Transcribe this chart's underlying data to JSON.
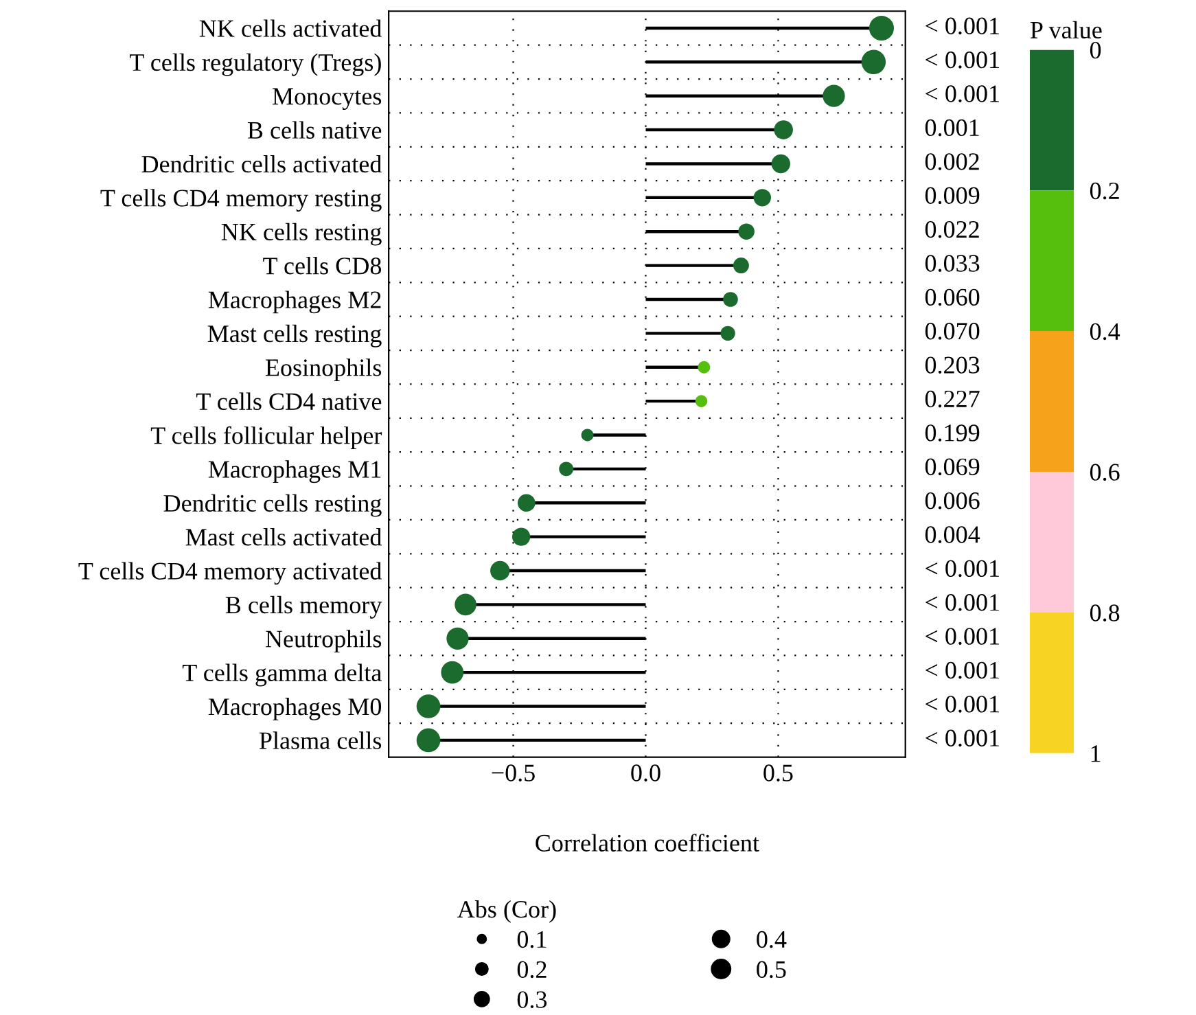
{
  "chart_data": [
    {
      "type": "lollipop",
      "xlabel": "Correlation coefficient",
      "categories": [
        "NK cells activated",
        "T cells regulatory (Tregs)",
        "Monocytes",
        "B cells native",
        "Dendritic cells activated",
        "T cells CD4 memory resting",
        "NK cells resting",
        "T cells CD8",
        "Macrophages M2",
        "Mast cells resting",
        "Eosinophils",
        "T cells CD4 native",
        "T cells follicular helper",
        "Macrophages M1",
        "Dendritic cells resting",
        "Mast cells activated",
        "T cells CD4 memory activated",
        "B cells memory",
        "Neutrophils",
        "T cells gamma delta",
        "Macrophages M0",
        "Plasma cells"
      ],
      "orientation": "horizontal",
      "values": [
        0.89,
        0.86,
        0.71,
        0.52,
        0.51,
        0.44,
        0.38,
        0.36,
        0.32,
        0.31,
        0.22,
        0.21,
        -0.22,
        -0.3,
        -0.45,
        -0.47,
        -0.55,
        -0.68,
        -0.71,
        -0.73,
        -0.82,
        -0.82
      ],
      "sizes": [
        0.89,
        0.86,
        0.71,
        0.52,
        0.51,
        0.44,
        0.38,
        0.36,
        0.32,
        0.31,
        0.22,
        0.21,
        0.22,
        0.3,
        0.45,
        0.47,
        0.55,
        0.68,
        0.71,
        0.73,
        0.82,
        0.82
      ],
      "size_legend": [
        0.1,
        0.2,
        0.3,
        0.4,
        0.5
      ],
      "legend_title": "Abs (Cor)",
      "colors": [
        "#1b6b2e",
        "#1b6b2e",
        "#1b6b2e",
        "#1b6b2e",
        "#1b6b2e",
        "#1b6b2e",
        "#1b6b2e",
        "#1b6b2e",
        "#1b6b2e",
        "#1b6b2e",
        "#56bf0d",
        "#56bf0d",
        "#1b6b2e",
        "#1b6b2e",
        "#1b6b2e",
        "#1b6b2e",
        "#1b6b2e",
        "#1b6b2e",
        "#1b6b2e",
        "#1b6b2e",
        "#1b6b2e",
        "#1b6b2e"
      ],
      "annotations": [
        "< 0.001",
        "< 0.001",
        "< 0.001",
        "0.001",
        "0.002",
        "0.009",
        "0.022",
        "0.033",
        "0.060",
        "0.070",
        "0.203",
        "0.227",
        "0.199",
        "0.069",
        "0.006",
        "0.004",
        "< 0.001",
        "< 0.001",
        "< 0.001",
        "< 0.001",
        "< 0.001",
        "< 0.001"
      ],
      "xlim": [
        -0.97,
        0.98
      ],
      "xticks": [
        {
          "value": -0.5,
          "label": "−0.5"
        },
        {
          "value": 0,
          "label": "0.0"
        },
        {
          "value": 0.5,
          "label": "0.5"
        }
      ],
      "grid": true
    },
    {
      "type": "bar",
      "title": "P value",
      "stacked": true,
      "categories": [
        null
      ],
      "series": [
        {
          "color": "#1b6b2e",
          "values": [
            0.2
          ]
        },
        {
          "color": "#56bf0d",
          "values": [
            0.2
          ]
        },
        {
          "color": "#f7a21b",
          "values": [
            0.2
          ]
        },
        {
          "color": "#ffc9d9",
          "values": [
            0.2
          ]
        },
        {
          "color": "#f7d323",
          "values": [
            0.2
          ]
        }
      ],
      "ylim": [
        1,
        0
      ],
      "yticks": [
        0,
        0.2,
        0.4,
        0.6,
        0.8,
        1
      ]
    }
  ]
}
